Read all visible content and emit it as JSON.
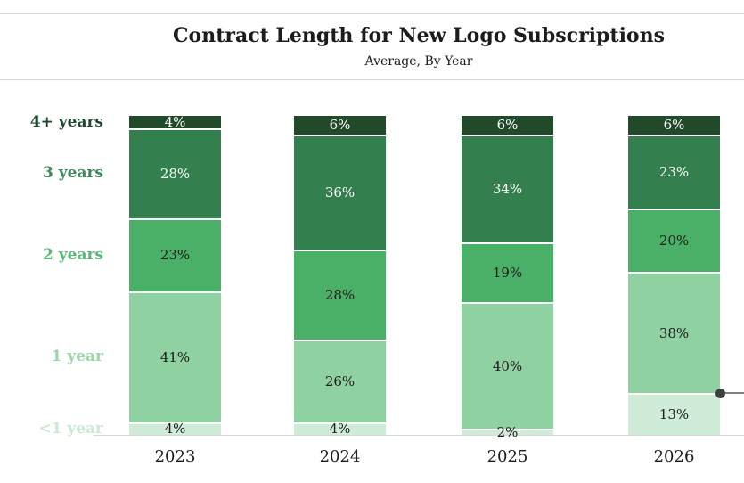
{
  "header": {
    "title": "Contract Length for New Logo Subscriptions",
    "subtitle": "Average, By Year"
  },
  "chart_data": {
    "type": "bar",
    "stacked": true,
    "units": "percent",
    "value_suffix": "%",
    "title": "Contract Length for New Logo Subscriptions",
    "subtitle": "Average, By Year",
    "xlabel": "",
    "ylabel": "",
    "legend_position": "left-row-labels",
    "grid": false,
    "categories": [
      "2023",
      "2024",
      "2025",
      "2026"
    ],
    "series": [
      {
        "name": "4+ years",
        "color": "#214a2b",
        "value_text_color": "#ffffff",
        "axis_label_color": "#1d4a2d",
        "values": [
          4,
          6,
          6,
          6
        ]
      },
      {
        "name": "3 years",
        "color": "#337f4d",
        "value_text_color": "#ffffff",
        "axis_label_color": "#3c8a59",
        "values": [
          28,
          36,
          34,
          23
        ]
      },
      {
        "name": "2 years",
        "color": "#4bb067",
        "value_text_color": "#1b1b1b",
        "axis_label_color": "#55bb73",
        "values": [
          23,
          28,
          19,
          20
        ]
      },
      {
        "name": "1 year",
        "color": "#90d1a1",
        "value_text_color": "#1b1b1b",
        "axis_label_color": "#9ad6aa",
        "values": [
          41,
          26,
          40,
          38
        ]
      },
      {
        "name": "<1 year",
        "color": "#cfecd8",
        "value_text_color": "#1b1b1b",
        "axis_label_color": "#c9e9d1",
        "values": [
          4,
          4,
          2,
          13
        ]
      }
    ],
    "annotation": {
      "category": "2026",
      "segment": "1 year",
      "edge": "bottom",
      "dot_color": "#3f3f3f",
      "line_color": "#7f7f7f"
    }
  },
  "colors": {
    "background": "#ffffff",
    "hairline": "#d9d9d9",
    "axis_line": "#d9d9d9",
    "text": "#1c1c1c"
  }
}
